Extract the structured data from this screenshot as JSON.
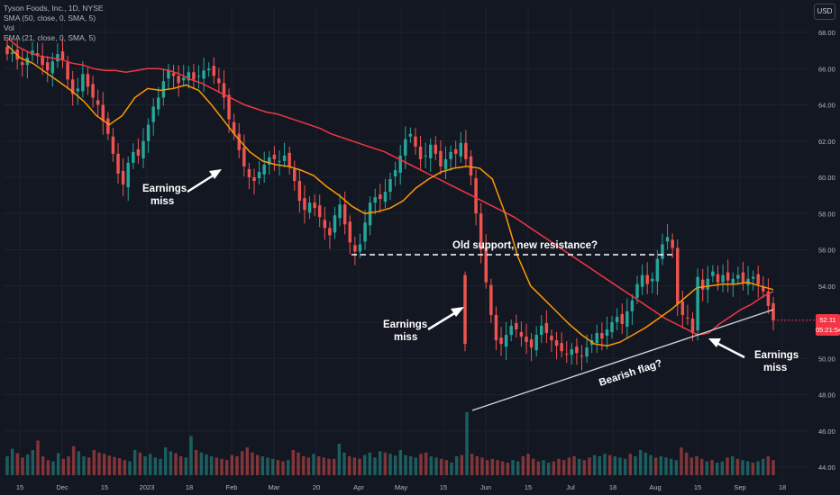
{
  "chart_data": {
    "type": "candlestick",
    "title": "Tyson Foods, Inc., 1D, NYSE",
    "indicators": [
      {
        "label": "SMA (50, close, 0, SMA, 5)",
        "color": "#f23645"
      },
      {
        "label": "Vol",
        "color": "#b2b5be"
      },
      {
        "label": "EMA (21, close, 0, SMA, 5)",
        "color": "#ff9800"
      }
    ],
    "currency": "USD",
    "y_axis": {
      "min": 44,
      "max": 68,
      "ticks": [
        "68.00",
        "66.00",
        "64.00",
        "62.00",
        "60.00",
        "58.00",
        "56.00",
        "54.00",
        "52.00",
        "50.00",
        "48.00",
        "46.00",
        "44.00"
      ]
    },
    "x_axis": {
      "ticks": [
        "15",
        "Dec",
        "15",
        "2023",
        "18",
        "Feb",
        "Mar",
        "20",
        "Apr",
        "May",
        "15",
        "Jun",
        "15",
        "Jul",
        "18",
        "Aug",
        "15",
        "Sep",
        "18"
      ]
    },
    "last_price": {
      "value": "52.11",
      "countdown": "05:21:54"
    },
    "close_series": [
      66.8,
      66.9,
      66.5,
      66.2,
      66.6,
      67.0,
      66.7,
      66.2,
      65.9,
      66.4,
      66.8,
      66.5,
      65.4,
      64.6,
      64.9,
      65.7,
      65.0,
      64.4,
      64.0,
      63.1,
      62.4,
      61.3,
      60.2,
      59.6,
      60.8,
      61.4,
      61.2,
      62.0,
      62.9,
      63.9,
      64.4,
      65.3,
      65.9,
      65.6,
      65.2,
      65.5,
      65.8,
      65.4,
      65.6,
      65.9,
      66.0,
      65.6,
      65.2,
      64.4,
      63.2,
      62.4,
      61.5,
      60.6,
      60.0,
      59.8,
      60.3,
      60.7,
      61.1,
      61.0,
      60.9,
      61.2,
      60.6,
      59.8,
      58.7,
      58.2,
      58.6,
      58.3,
      57.8,
      57.2,
      56.8,
      57.9,
      58.5,
      57.4,
      56.4,
      55.9,
      56.3,
      57.5,
      58.6,
      58.9,
      58.8,
      59.2,
      59.9,
      60.4,
      61.2,
      62.1,
      62.4,
      61.7,
      61.0,
      61.2,
      61.8,
      61.3,
      60.6,
      61.0,
      61.4,
      61.3,
      61.9,
      61.0,
      60.1,
      58.0,
      56.0,
      54.2,
      52.4,
      51.0,
      50.8,
      51.3,
      51.8,
      51.6,
      51.2,
      50.9,
      50.6,
      51.3,
      51.8,
      51.4,
      51.0,
      50.7,
      50.4,
      50.2,
      50.5,
      50.3,
      50.1,
      50.6,
      51.0,
      51.4,
      51.1,
      51.6,
      52.0,
      52.3,
      51.9,
      52.6,
      53.2,
      54.1,
      54.6,
      54.1,
      54.4,
      55.5,
      56.3,
      56.7,
      56.1,
      53.0,
      52.4,
      52.2,
      51.4,
      54.5,
      53.8,
      54.4,
      54.8,
      54.2,
      54.6,
      54.3,
      54.4,
      54.6,
      54.2,
      54.4,
      54.5,
      54.1,
      53.7,
      52.9,
      52.1
    ],
    "sma50_series": [
      67.7,
      67.2,
      66.9,
      66.7,
      66.6,
      66.5,
      66.3,
      66.2,
      66.0,
      65.9,
      65.9,
      65.8,
      65.9,
      66.0,
      66.0,
      65.9,
      65.7,
      65.4,
      65.2,
      64.9,
      64.6,
      64.3,
      64.0,
      63.8,
      63.6,
      63.5,
      63.3,
      63.1,
      62.9,
      62.7,
      62.4,
      62.2,
      62.0,
      61.8,
      61.6,
      61.4,
      61.1,
      60.8,
      60.5,
      60.2,
      59.9,
      59.6,
      59.3,
      59.0,
      58.7,
      58.4,
      58.1,
      57.8,
      57.4,
      57.0,
      56.6,
      56.2,
      55.8,
      55.4,
      55.0,
      54.6,
      54.2,
      53.8,
      53.4,
      53.0,
      52.6,
      52.2,
      51.9,
      51.6,
      51.3,
      51.4,
      51.9,
      52.3,
      52.7,
      53.0,
      53.4,
      53.7
    ],
    "ema21_series": [
      67.3,
      66.6,
      66.3,
      65.8,
      65.3,
      64.8,
      64.2,
      63.4,
      62.9,
      63.4,
      64.4,
      64.9,
      64.8,
      64.9,
      65.1,
      64.8,
      64.0,
      63.1,
      62.2,
      61.4,
      60.9,
      60.7,
      60.6,
      60.4,
      60.1,
      59.5,
      59.0,
      58.4,
      58.0,
      58.1,
      58.3,
      58.7,
      59.4,
      59.9,
      60.3,
      60.5,
      60.6,
      60.5,
      59.9,
      58.0,
      55.6,
      54.0,
      53.3,
      52.6,
      51.9,
      51.3,
      50.8,
      50.7,
      50.9,
      51.3,
      51.7,
      52.2,
      52.7,
      53.3,
      53.9,
      54.0,
      54.1,
      54.1,
      54.2,
      54.0,
      53.8
    ],
    "volume_series": [
      30,
      42,
      35,
      28,
      33,
      40,
      55,
      30,
      24,
      22,
      35,
      26,
      30,
      46,
      38,
      30,
      28,
      40,
      36,
      34,
      31,
      29,
      27,
      24,
      22,
      40,
      36,
      30,
      34,
      28,
      26,
      44,
      38,
      35,
      30,
      28,
      62,
      40,
      36,
      33,
      30,
      28,
      26,
      24,
      32,
      30,
      38,
      44,
      36,
      32,
      30,
      28,
      26,
      24,
      22,
      24,
      40,
      36,
      30,
      28,
      34,
      30,
      28,
      26,
      26,
      50,
      36,
      30,
      28,
      26,
      32,
      36,
      28,
      38,
      36,
      34,
      31,
      40,
      32,
      30,
      28,
      34,
      36,
      30,
      28,
      26,
      24,
      20,
      30,
      32,
      100,
      34,
      30,
      28,
      24,
      26,
      24,
      22,
      20,
      24,
      22,
      30,
      34,
      26,
      22,
      24,
      20,
      22,
      26,
      24,
      28,
      30,
      26,
      24,
      28,
      32,
      30,
      34,
      32,
      30,
      28,
      26,
      34,
      30,
      40,
      36,
      32,
      28,
      30,
      28,
      26,
      24,
      44,
      36,
      28,
      30,
      26,
      22,
      24,
      20,
      22,
      28,
      30,
      26,
      24,
      22,
      20,
      22,
      26,
      30,
      24
    ],
    "annotations": {
      "earnings_1": [
        "Earnings",
        "miss"
      ],
      "earnings_2": [
        "Earnings",
        "miss"
      ],
      "earnings_3": [
        "Earnings",
        "miss"
      ],
      "resistance": "Old support, new resistance?",
      "flag": "Bearish flag?"
    },
    "colors": {
      "up": "#26a69a",
      "down": "#ef5350",
      "sma": "#f23645",
      "ema": "#ff9800",
      "background": "#131722",
      "grid": "#1e222d",
      "axis_text": "#b2b5be"
    }
  }
}
